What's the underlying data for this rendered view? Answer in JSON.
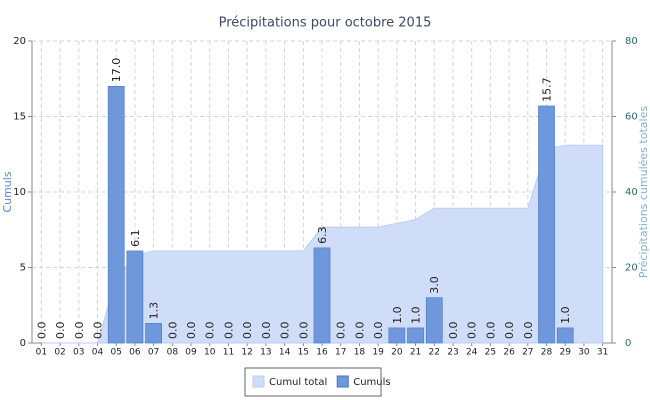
{
  "chart_data": {
    "type": "bar",
    "title": "Précipitations pour octobre 2015",
    "ylabel": "Cumuls",
    "y2label": "Précipitations cumulées totales",
    "categories": [
      "01",
      "02",
      "03",
      "04",
      "05",
      "06",
      "07",
      "08",
      "09",
      "10",
      "11",
      "12",
      "13",
      "14",
      "15",
      "16",
      "17",
      "18",
      "19",
      "20",
      "21",
      "22",
      "23",
      "24",
      "25",
      "26",
      "27",
      "28",
      "29",
      "30",
      "31"
    ],
    "series": [
      {
        "name": "Cumul total",
        "type": "area",
        "axis": "y2",
        "color": "#d0ddf8",
        "edge": "#b9cdf2",
        "values": [
          0,
          0,
          0,
          0,
          17,
          23.1,
          24.4,
          24.4,
          24.4,
          24.4,
          24.4,
          24.4,
          24.4,
          24.4,
          24.4,
          30.7,
          30.7,
          30.7,
          30.7,
          31.7,
          32.7,
          35.7,
          35.7,
          35.7,
          35.7,
          35.7,
          35.7,
          51.4,
          52.4,
          52.4,
          52.4
        ]
      },
      {
        "name": "Cumuls",
        "type": "bar",
        "color": "#6f98dc",
        "edge": "#4a74c0",
        "values": [
          0,
          0,
          0,
          0,
          17,
          6.1,
          1.3,
          0,
          0,
          0,
          0,
          0,
          0,
          0,
          0,
          6.3,
          0,
          0,
          0,
          1,
          1,
          3,
          0,
          0,
          0,
          0,
          0,
          15.7,
          1,
          null,
          null
        ],
        "value_labels": [
          "0.0",
          "0.0",
          "0.0",
          "0.0",
          "17.0",
          "6.1",
          "1.3",
          "0.0",
          "0.0",
          "0.0",
          "0.0",
          "0.0",
          "0.0",
          "0.0",
          "0.0",
          "6.3",
          "0.0",
          "0.0",
          "0.0",
          "1.0",
          "1.0",
          "3.0",
          "0.0",
          "0.0",
          "0.0",
          "0.0",
          "0.0",
          "15.7",
          "1.0",
          null,
          null
        ]
      }
    ],
    "ylim": [
      0,
      20
    ],
    "yticks": [
      0,
      5,
      10,
      15,
      20
    ],
    "y2lim": [
      0,
      80
    ],
    "y2ticks": [
      0,
      20,
      40,
      60,
      80
    ],
    "grid": true,
    "legend": "bottom"
  }
}
